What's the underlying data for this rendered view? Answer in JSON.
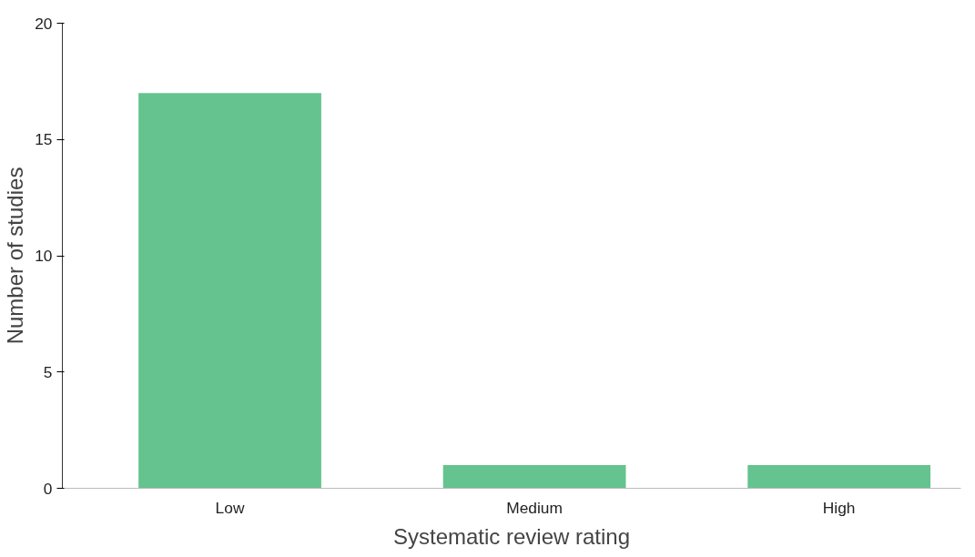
{
  "chart_data": {
    "type": "bar",
    "xlabel": "Systematic review rating",
    "ylabel": "Number of studies",
    "categories": [
      "Low",
      "Medium",
      "High"
    ],
    "values": [
      17,
      1,
      1
    ],
    "color": "#64c38e",
    "ylim": [
      0,
      20
    ],
    "yticks": [
      0,
      5,
      10,
      15,
      20
    ],
    "grid": false
  }
}
